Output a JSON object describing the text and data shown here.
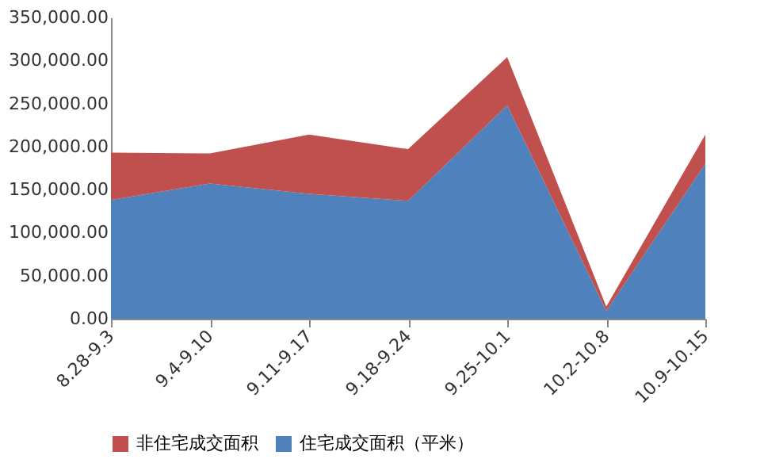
{
  "chart_data": {
    "type": "area",
    "stacked": true,
    "categories": [
      "8.28-9.3",
      "9.4-9.10",
      "9.11-9.17",
      "9.18-9.24",
      "9.25-10.1",
      "10.2-10.8",
      "10.9-10.15"
    ],
    "series": [
      {
        "name": "住宅成交面积（平米）",
        "color": "#4f81bd",
        "values": [
          138000,
          157000,
          145000,
          137000,
          248000,
          9000,
          180000
        ]
      },
      {
        "name": "非住宅成交面积",
        "color": "#c0504d",
        "values": [
          55000,
          35000,
          69000,
          60000,
          56000,
          5000,
          34000
        ]
      }
    ],
    "ylim": [
      0,
      350000
    ],
    "yticks": [
      {
        "value": 0,
        "label": "0.00"
      },
      {
        "value": 50000,
        "label": "50,000.00"
      },
      {
        "value": 100000,
        "label": "100,000.00"
      },
      {
        "value": 150000,
        "label": "150,000.00"
      },
      {
        "value": 200000,
        "label": "200,000.00"
      },
      {
        "value": 250000,
        "label": "250,000.00"
      },
      {
        "value": 300000,
        "label": "300,000.00"
      },
      {
        "value": 350000,
        "label": "350,000.00"
      }
    ],
    "grid": false,
    "legend": "bottom"
  }
}
